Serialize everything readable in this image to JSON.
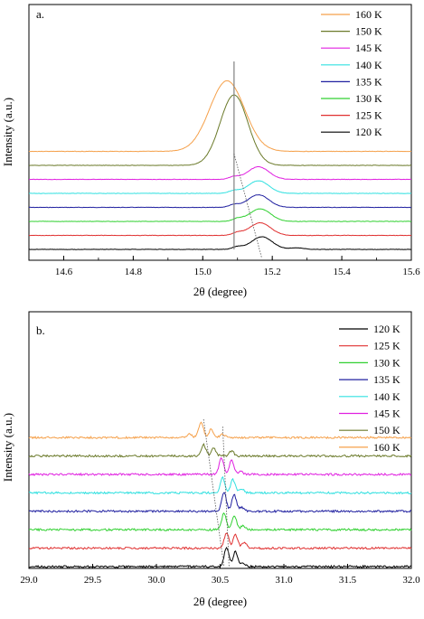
{
  "chart_data": [
    {
      "type": "line",
      "panel_label": "a.",
      "xlabel": "2θ (degree)",
      "ylabel": "Intensity (a.u.)",
      "xlim": [
        14.5,
        15.6
      ],
      "x_ticks": [
        "14.6",
        "14.8",
        "15.0",
        "15.2",
        "15.4",
        "15.6"
      ],
      "x_tick_values": [
        14.6,
        14.8,
        15.0,
        15.2,
        15.4,
        15.6
      ],
      "legend_position": "top-right",
      "grid": false,
      "series": [
        {
          "name": "160 K",
          "color": "#f5a04a",
          "peaks": [
            [
              15.07,
              1.0,
              0.05
            ]
          ],
          "baseline_offset": 7
        },
        {
          "name": "150 K",
          "color": "#6b7a2a",
          "peaks": [
            [
              15.09,
              1.0,
              0.04
            ]
          ],
          "baseline_offset": 6
        },
        {
          "name": "145 K",
          "color": "#e020e0",
          "peaks": [
            [
              15.16,
              1.0,
              0.03
            ],
            [
              15.09,
              0.2,
              0.015
            ]
          ],
          "baseline_offset": 5
        },
        {
          "name": "140 K",
          "color": "#30e0e0",
          "peaks": [
            [
              15.16,
              1.0,
              0.03
            ],
            [
              15.09,
              0.2,
              0.015
            ]
          ],
          "baseline_offset": 4
        },
        {
          "name": "135 K",
          "color": "#2020a0",
          "peaks": [
            [
              15.16,
              1.0,
              0.03
            ],
            [
              15.09,
              0.2,
              0.015
            ]
          ],
          "baseline_offset": 3
        },
        {
          "name": "130 K",
          "color": "#30d030",
          "peaks": [
            [
              15.165,
              1.0,
              0.03
            ],
            [
              15.1,
              0.2,
              0.015
            ]
          ],
          "baseline_offset": 2
        },
        {
          "name": "125 K",
          "color": "#e03030",
          "peaks": [
            [
              15.165,
              1.0,
              0.03
            ],
            [
              15.1,
              0.2,
              0.015
            ]
          ],
          "baseline_offset": 1
        },
        {
          "name": "120 K",
          "color": "#000000",
          "peaks": [
            [
              15.17,
              1.0,
              0.03
            ],
            [
              15.1,
              0.2,
              0.015
            ],
            [
              15.27,
              0.12,
              0.02
            ]
          ],
          "baseline_offset": 0
        }
      ],
      "reference_lines": [
        {
          "type": "vertical",
          "x": 15.09,
          "style": "solid",
          "color": "#808080"
        },
        {
          "type": "diagonal",
          "from": [
            15.09,
            1
          ],
          "to": [
            15.17,
            0
          ],
          "style": "dotted"
        }
      ]
    },
    {
      "type": "line",
      "panel_label": "b.",
      "xlabel": "2θ (degree)",
      "ylabel": "Intensity (a.u.)",
      "xlim": [
        29.0,
        32.0
      ],
      "x_ticks": [
        "29.0",
        "29.5",
        "30.0",
        "30.5",
        "31.0",
        "31.5",
        "32.0"
      ],
      "x_tick_values": [
        29.0,
        29.5,
        30.0,
        30.5,
        31.0,
        31.5,
        32.0
      ],
      "legend_position": "top-right",
      "grid": false,
      "series": [
        {
          "name": "120 K",
          "color": "#000000",
          "peaks": [
            [
              30.55,
              3.0
            ],
            [
              30.62,
              2.4
            ],
            [
              30.68,
              0.6
            ]
          ],
          "baseline_offset": 0
        },
        {
          "name": "125 K",
          "color": "#e03030",
          "peaks": [
            [
              30.55,
              2.4
            ],
            [
              30.62,
              2.2
            ],
            [
              30.69,
              0.9
            ]
          ],
          "baseline_offset": 1
        },
        {
          "name": "130 K",
          "color": "#30d030",
          "peaks": [
            [
              30.53,
              2.6
            ],
            [
              30.61,
              2.3
            ],
            [
              30.68,
              0.6
            ]
          ],
          "baseline_offset": 2
        },
        {
          "name": "135 K",
          "color": "#2020a0",
          "peaks": [
            [
              30.53,
              3.0
            ],
            [
              30.61,
              2.6
            ],
            [
              30.67,
              0.6
            ]
          ],
          "baseline_offset": 3
        },
        {
          "name": "140 K",
          "color": "#30e0e0",
          "peaks": [
            [
              30.52,
              2.4
            ],
            [
              30.6,
              2.1
            ],
            [
              30.67,
              0.6
            ]
          ],
          "baseline_offset": 4
        },
        {
          "name": "145 K",
          "color": "#e020e0",
          "peaks": [
            [
              30.51,
              2.6
            ],
            [
              30.59,
              2.2
            ],
            [
              30.66,
              0.5
            ]
          ],
          "baseline_offset": 5
        },
        {
          "name": "150 K",
          "color": "#6b7a2a",
          "peaks": [
            [
              30.37,
              1.8
            ],
            [
              30.45,
              1.2
            ],
            [
              30.59,
              0.8
            ]
          ],
          "baseline_offset": 6
        },
        {
          "name": "160 K",
          "color": "#f5a04a",
          "peaks": [
            [
              30.35,
              2.5
            ],
            [
              30.43,
              1.3
            ],
            [
              30.26,
              0.6
            ],
            [
              30.52,
              0.5
            ]
          ],
          "baseline_offset": 7
        }
      ],
      "reference_lines": [
        {
          "type": "diagonal",
          "from": [
            30.37,
            7.6
          ],
          "to": [
            30.53,
            0
          ],
          "style": "dotted"
        },
        {
          "type": "diagonal",
          "from": [
            30.52,
            7.2
          ],
          "to": [
            30.57,
            0
          ],
          "style": "dotted"
        }
      ]
    }
  ]
}
